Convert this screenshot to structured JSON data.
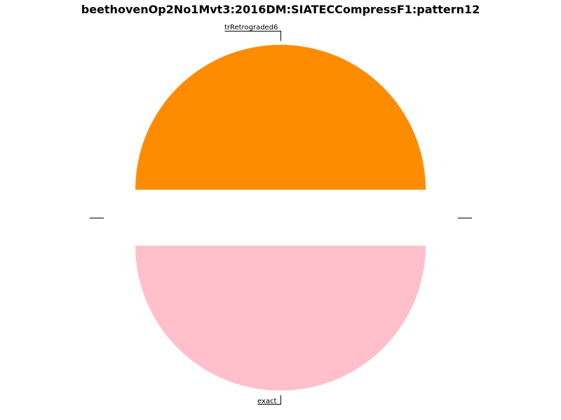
{
  "chart_data": {
    "type": "pie",
    "title": "beethovenOp2No1Mvt3:2016DM:SIATECCompressF1:pattern12",
    "slices": [
      {
        "label": "trRetrograded6",
        "value": 50,
        "color": "#ff8c00"
      },
      {
        "label": "exact",
        "value": 50,
        "color": "#ffc0cb"
      }
    ]
  }
}
